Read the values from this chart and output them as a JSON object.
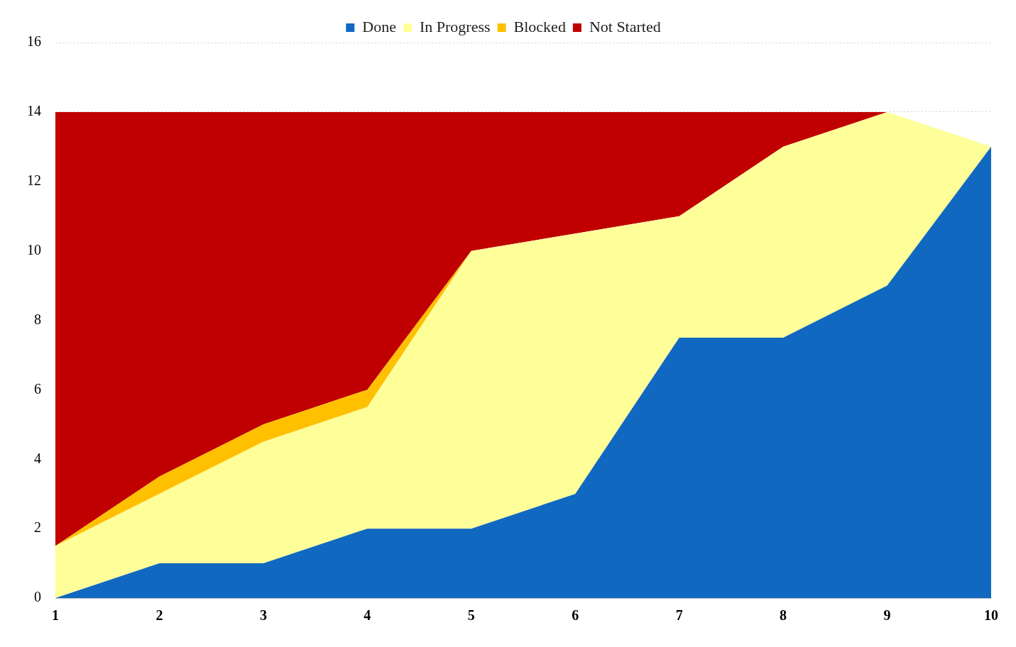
{
  "chart_data": {
    "type": "area",
    "stacked": true,
    "categories": [
      "1",
      "2",
      "3",
      "4",
      "5",
      "6",
      "7",
      "8",
      "9",
      "10"
    ],
    "series": [
      {
        "name": "Done",
        "color": "#1168c0",
        "values": [
          0,
          1,
          1,
          2,
          2,
          3,
          7.5,
          7.5,
          9,
          13
        ]
      },
      {
        "name": "In Progress",
        "color": "#ffff99",
        "values": [
          1.5,
          2,
          3.5,
          3.5,
          8,
          7.5,
          3.5,
          5.5,
          5,
          0
        ]
      },
      {
        "name": "Blocked",
        "color": "#ffc000",
        "values": [
          0,
          0.5,
          0.5,
          0.5,
          0,
          0,
          0,
          0,
          0,
          0
        ]
      },
      {
        "name": "Not Started",
        "color": "#c00000",
        "values": [
          12.5,
          10.5,
          9,
          8,
          4,
          3.5,
          3,
          1,
          0,
          null
        ]
      }
    ],
    "ylim": [
      0,
      16
    ],
    "yticks": [
      0,
      2,
      4,
      6,
      8,
      10,
      12,
      14,
      16
    ],
    "grid": "y",
    "legend": "top"
  }
}
